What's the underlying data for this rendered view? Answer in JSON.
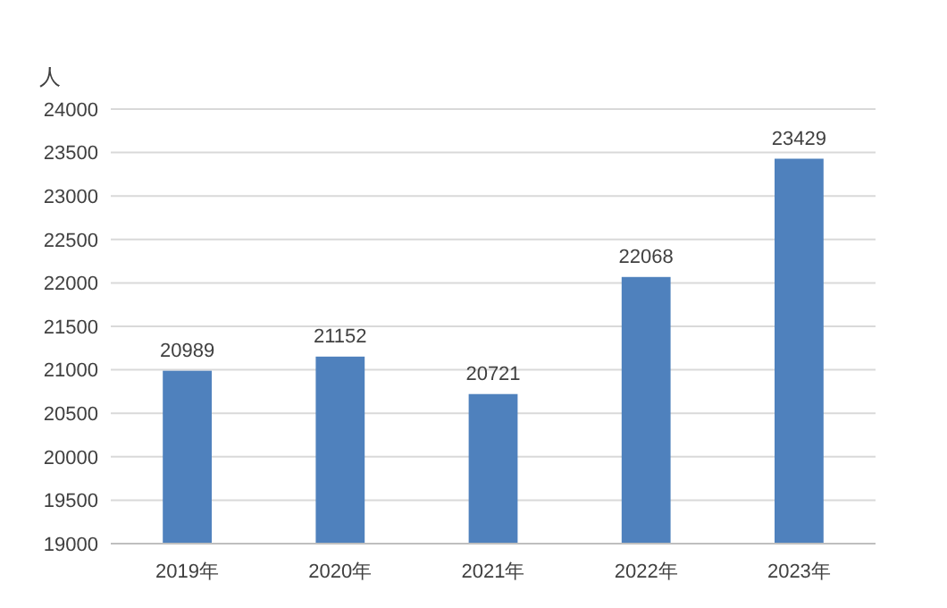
{
  "chart_data": {
    "type": "bar",
    "ylabel": "人",
    "categories": [
      "2019年",
      "2020年",
      "2021年",
      "2022年",
      "2023年"
    ],
    "values": [
      20989,
      21152,
      20721,
      22068,
      23429
    ],
    "color": "#4f81bd",
    "data_labels": true,
    "grid": "y",
    "ylim": [
      19000,
      24000
    ],
    "yticks": [
      19000,
      19500,
      20000,
      20500,
      21000,
      21500,
      22000,
      22500,
      23000,
      23500,
      24000
    ]
  }
}
